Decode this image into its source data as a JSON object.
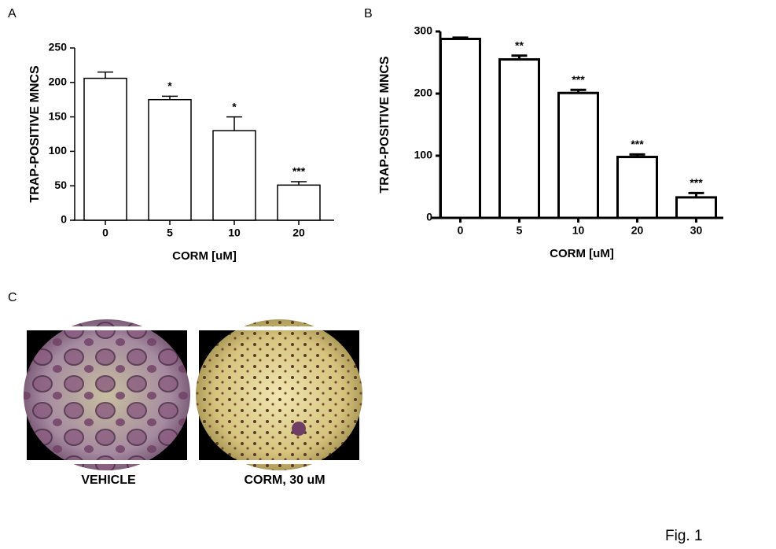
{
  "chart_data": [
    {
      "type": "bar",
      "panel_label": "A",
      "y_label": "TRAP-POSITIVE MNCS",
      "x_label": "CORM [uM]",
      "categories": [
        "0",
        "5",
        "10",
        "20"
      ],
      "values": [
        206,
        175,
        130,
        51
      ],
      "errors": [
        9,
        5,
        20,
        5
      ],
      "annotations": [
        null,
        "*",
        "*",
        "***"
      ],
      "ylim": [
        0,
        250
      ],
      "yticks": [
        0,
        50,
        100,
        150,
        200,
        250
      ],
      "color": "#ffffff"
    },
    {
      "type": "bar",
      "panel_label": "B",
      "y_label": "TRAP-POSITIVE MNCS",
      "x_label": "CORM [uM]",
      "categories": [
        "0",
        "5",
        "10",
        "20",
        "30"
      ],
      "values": [
        288,
        255,
        201,
        98,
        33
      ],
      "errors": [
        2,
        6,
        5,
        4,
        7
      ],
      "annotations": [
        null,
        "**",
        "***",
        "***",
        "***"
      ],
      "ylim": [
        0,
        300
      ],
      "yticks": [
        0,
        100,
        200,
        300
      ],
      "color": "#ffffff"
    }
  ],
  "panel_c": {
    "label": "C",
    "images": [
      {
        "caption": "VEHICLE"
      },
      {
        "caption": "CORM, 30 uM"
      }
    ]
  },
  "footer": "Fig. 1"
}
